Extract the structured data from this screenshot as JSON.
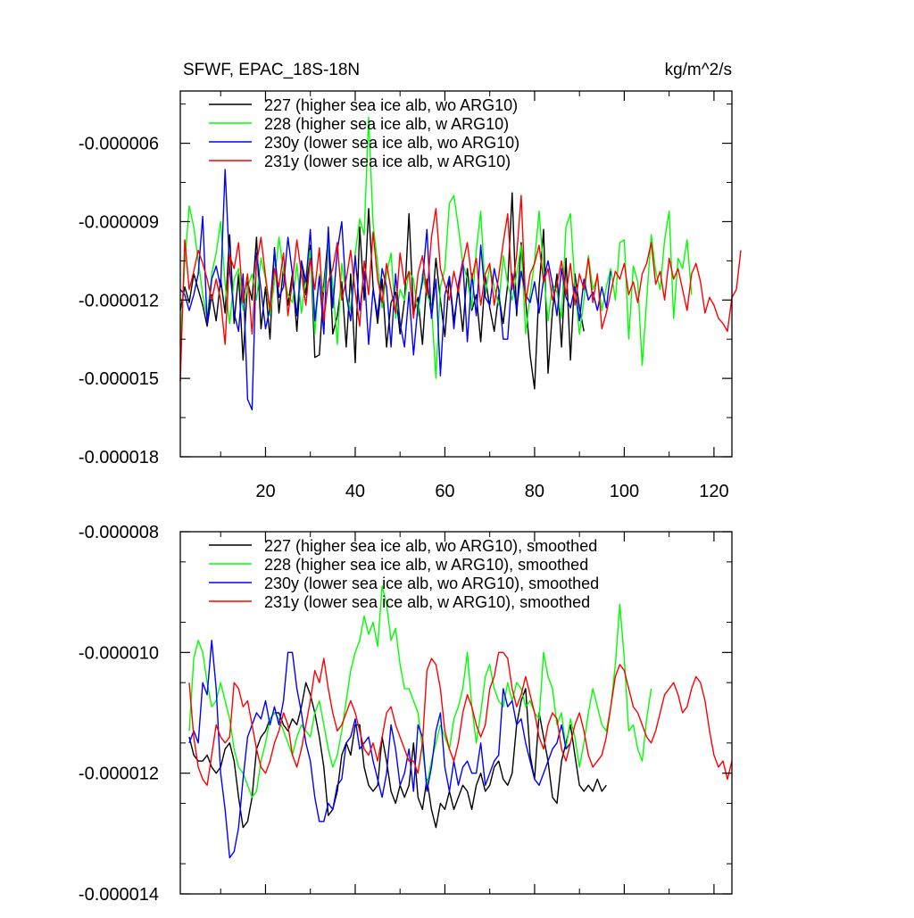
{
  "chart_data": [
    {
      "type": "line",
      "title": "SFWF, EPAC_18S-18N",
      "units": "kg/m^2/s",
      "xlabel": "",
      "ylabel": "",
      "xlim": [
        1,
        124
      ],
      "ylim": [
        -1.8e-05,
        -4e-06
      ],
      "yticks": [
        -1.8e-05,
        -1.5e-05,
        -1.2e-05,
        -9e-06,
        -6e-06
      ],
      "ytick_labels": [
        "-0.000018",
        "-0.000015",
        "-0.000012",
        "-0.000009",
        "-0.000006"
      ],
      "xticks": [
        20,
        40,
        60,
        80,
        100,
        120
      ],
      "xtick_labels": [
        "20",
        "40",
        "60",
        "80",
        "100",
        "120"
      ],
      "legend_position": "top-left",
      "series": [
        {
          "name": "227 (higher sea ice alb, wo ARG10)",
          "color": "#000000",
          "x_start": 1,
          "values": [
            -12.4,
            -11.5,
            -12.1,
            -11.0,
            -11.6,
            -12.2,
            -13.0,
            -11.8,
            -12.8,
            -11.2,
            -12.5,
            -9.5,
            -12.9,
            -11.0,
            -14.3,
            -11.3,
            -12.0,
            -9.6,
            -13.1,
            -11.5,
            -13.5,
            -10.0,
            -12.5,
            -10.8,
            -12.2,
            -11.0,
            -13.2,
            -10.5,
            -11.8,
            -9.9,
            -14.2,
            -14.1,
            -11.4,
            -9.6,
            -13.3,
            -12.6,
            -11.3,
            -13.8,
            -11.0,
            -14.4,
            -9.2,
            -12.0,
            -8.5,
            -11.5,
            -12.9,
            -11.2,
            -13.8,
            -12.1,
            -11.7,
            -13.3,
            -12.0,
            -8.7,
            -12.5,
            -11.9,
            -13.7,
            -11.2,
            -12.6,
            -10.4,
            -12.0,
            -13.4,
            -11.1,
            -12.8,
            -11.6,
            -13.2,
            -10.8,
            -12.4,
            -11.8,
            -13.6,
            -11.1,
            -12.3,
            -13.2,
            -11.8,
            -12.9,
            -11.4,
            -7.9,
            -12.6,
            -9.8,
            -12.0,
            -14.1,
            -15.4,
            -11.5,
            -9.3,
            -14.8,
            -12.4,
            -11.0,
            -13.8,
            -10.4,
            -14.3,
            -11.0,
            -12.3,
            -13.2
          ]
        },
        {
          "name": "228 (higher sea ice alb, w ARG10)",
          "color": "#00ff00",
          "x_start": 1,
          "values": [
            -13.6,
            -10.6,
            -8.4,
            -9.2,
            -10.5,
            -11.8,
            -12.7,
            -11.0,
            -10.2,
            -9.0,
            -11.4,
            -12.9,
            -11.2,
            -10.8,
            -12.4,
            -11.5,
            -11.0,
            -12.0,
            -10.4,
            -11.2,
            -12.6,
            -11.3,
            -9.6,
            -10.9,
            -11.8,
            -12.1,
            -10.6,
            -12.5,
            -11.2,
            -10.1,
            -13.3,
            -11.0,
            -11.7,
            -9.8,
            -11.4,
            -13.7,
            -10.6,
            -11.8,
            -12.4,
            -10.2,
            -8.9,
            -9.5,
            -5.0,
            -9.1,
            -10.6,
            -12.3,
            -11.0,
            -10.2,
            -12.7,
            -11.6,
            -12.0,
            -10.9,
            -11.2,
            -12.6,
            -11.0,
            -11.8,
            -12.2,
            -15.0,
            -11.5,
            -10.8,
            -8.3,
            -8.0,
            -9.2,
            -10.6,
            -11.2,
            -12.3,
            -10.1,
            -8.6,
            -11.8,
            -10.7,
            -11.5,
            -12.2,
            -10.3,
            -11.4,
            -12.0,
            -11.0,
            -9.9,
            -13.3,
            -11.8,
            -10.5,
            -8.6,
            -10.9,
            -12.8,
            -11.4,
            -11.7,
            -12.7,
            -9.2,
            -8.7,
            -11.5,
            -13.3,
            -12.0,
            -10.3,
            -11.6,
            -11.1,
            -12.4,
            -11.5,
            -10.8,
            -12.0,
            -9.8,
            -9.7,
            -13.5,
            -10.7,
            -11.3,
            -14.5,
            -12.0,
            -9.5,
            -10.9,
            -11.6,
            -9.7,
            -8.6,
            -12.7,
            -10.4,
            -10.8,
            -9.7,
            -11.8
          ]
        },
        {
          "name": "230y (lower sea ice alb, wo ARG10)",
          "color": "#0000ff",
          "x_start": 1,
          "values": [
            -11.6,
            -11.8,
            -12.4,
            -11.8,
            -11.0,
            -8.8,
            -12.9,
            -11.2,
            -10.7,
            -11.5,
            -7.0,
            -10.8,
            -12.5,
            -13.2,
            -11.0,
            -15.8,
            -16.2,
            -10.2,
            -11.6,
            -13.1,
            -12.3,
            -10.1,
            -11.9,
            -11.5,
            -9.6,
            -11.0,
            -12.6,
            -10.5,
            -11.3,
            -9.3,
            -12.8,
            -11.1,
            -13.3,
            -9.2,
            -12.3,
            -10.1,
            -9.0,
            -11.8,
            -12.8,
            -10.3,
            -12.4,
            -10.9,
            -13.7,
            -11.6,
            -12.6,
            -10.8,
            -11.5,
            -13.8,
            -11.0,
            -12.9,
            -13.8,
            -11.7,
            -14.1,
            -12.2,
            -11.3,
            -9.3,
            -12.7,
            -11.2,
            -14.9,
            -11.8,
            -11.1,
            -13.1,
            -11.4,
            -10.5,
            -13.6,
            -11.0,
            -12.6,
            -9.9,
            -11.9,
            -12.2,
            -10.8,
            -11.6,
            -13.5,
            -13.5,
            -11.0,
            -12.4,
            -10.9,
            -11.8,
            -12.1,
            -11.3,
            -12.5,
            -11.2,
            -10.5,
            -11.4,
            -12.6,
            -10.8,
            -11.9,
            -12.3,
            -11.5,
            -12.8,
            -11.2,
            -12.0,
            -11.7,
            -12.4,
            -11.5,
            -12.3,
            -10.9
          ]
        },
        {
          "name": "231y (lower sea ice alb, w ARG10)",
          "color": "#ff0000",
          "x_start": 1,
          "values": [
            -15.1,
            -9.7,
            -11.6,
            -10.9,
            -10.1,
            -10.6,
            -11.2,
            -12.0,
            -11.2,
            -12.0,
            -13.7,
            -10.3,
            -10.8,
            -9.8,
            -12.1,
            -11.0,
            -13.3,
            -10.6,
            -9.6,
            -11.1,
            -12.4,
            -10.8,
            -11.5,
            -10.2,
            -12.6,
            -11.3,
            -9.7,
            -11.0,
            -12.2,
            -10.4,
            -11.6,
            -10.0,
            -12.8,
            -11.3,
            -10.8,
            -9.8,
            -12.0,
            -11.2,
            -10.1,
            -11.7,
            -13.0,
            -10.5,
            -11.8,
            -9.4,
            -11.2,
            -12.1,
            -10.6,
            -11.6,
            -12.5,
            -10.2,
            -11.4,
            -10.9,
            -12.7,
            -11.0,
            -10.3,
            -11.8,
            -9.6,
            -8.5,
            -10.8,
            -11.4,
            -12.0,
            -10.9,
            -11.7,
            -10.6,
            -9.8,
            -11.2,
            -10.4,
            -12.2,
            -11.0,
            -10.6,
            -12.2,
            -11.1,
            -9.8,
            -8.7,
            -11.6,
            -10.3,
            -8.0,
            -12.1,
            -11.0,
            -10.6,
            -9.9,
            -11.3,
            -10.8,
            -12.0,
            -11.4,
            -10.5,
            -11.8,
            -10.6,
            -12.2,
            -11.0,
            -11.6,
            -10.4,
            -12.1,
            -11.0,
            -13.1,
            -12.5,
            -11.7,
            -10.9,
            -11.2,
            -10.6,
            -11.8,
            -11.3,
            -12.1,
            -11.0,
            -10.6,
            -9.8,
            -11.4,
            -10.9,
            -12.0,
            -10.4,
            -11.2,
            -10.8,
            -11.6,
            -12.4,
            -11.0,
            -10.6,
            -11.3,
            -12.5,
            -11.9,
            -12.2,
            -12.7,
            -12.9,
            -13.2,
            -11.9,
            -11.6,
            -10.1
          ]
        }
      ]
    },
    {
      "type": "line",
      "title": "",
      "xlabel": "",
      "ylabel": "",
      "xlim": [
        1,
        124
      ],
      "ylim": [
        -1.4e-05,
        -8e-06
      ],
      "yticks": [
        -1.4e-05,
        -1.2e-05,
        -1e-05,
        -8e-06
      ],
      "ytick_labels": [
        "-0.000014",
        "-0.000012",
        "-0.000010",
        "-0.000008"
      ],
      "legend_position": "top-left",
      "series": [
        {
          "name": "227 (higher sea ice alb, wo ARG10), smoothed",
          "color": "#000000",
          "x_start": 3,
          "values": [
            -11.4,
            -11.7,
            -11.8,
            -11.8,
            -11.7,
            -11.9,
            -12.0,
            -11.9,
            -11.6,
            -11.5,
            -11.8,
            -12.4,
            -12.9,
            -12.8,
            -12.4,
            -11.6,
            -11.4,
            -11.3,
            -11.1,
            -11.0,
            -11.0,
            -11.2,
            -11.3,
            -11.1,
            -11.2,
            -10.9,
            -10.5,
            -10.7,
            -11.0,
            -11.4,
            -11.9,
            -12.7,
            -12.6,
            -12.3,
            -11.7,
            -11.5,
            -11.7,
            -11.2,
            -11.2,
            -11.9,
            -12.2,
            -12.3,
            -12.2,
            -11.4,
            -11.8,
            -12.3,
            -12.5,
            -12.2,
            -12.4,
            -12.2,
            -11.5,
            -12.4,
            -12.6,
            -12.1,
            -12.6,
            -12.9,
            -12.5,
            -12.6,
            -12.3,
            -12.6,
            -12.4,
            -12.2,
            -12.3,
            -12.6,
            -12.2,
            -12.0,
            -12.3,
            -12.2,
            -11.9,
            -11.8,
            -12.1,
            -12.2,
            -12.0,
            -11.2,
            -10.8,
            -10.6,
            -11.7,
            -12.1,
            -11.0,
            -11.4,
            -11.8,
            -12.4,
            -12.5,
            -11.8,
            -11.5,
            -11.2,
            -11.7,
            -12.2,
            -12.3,
            -12.2,
            -12.3,
            -12.1,
            -12.3,
            -12.2
          ]
        },
        {
          "name": "228 (higher sea ice alb, w ARG10), smoothed",
          "color": "#00ff00",
          "x_start": 3,
          "values": [
            -11.3,
            -10.1,
            -9.8,
            -10.0,
            -10.5,
            -10.9,
            -10.8,
            -10.5,
            -10.8,
            -11.1,
            -11.6,
            -11.9,
            -12.0,
            -12.2,
            -12.4,
            -12.3,
            -11.8,
            -11.5,
            -11.1,
            -11.0,
            -11.1,
            -11.3,
            -11.5,
            -11.7,
            -11.4,
            -11.2,
            -11.3,
            -11.4,
            -11.0,
            -10.8,
            -11.2,
            -11.6,
            -11.9,
            -11.7,
            -11.3,
            -10.8,
            -10.3,
            -10.0,
            -9.8,
            -9.4,
            -9.7,
            -9.5,
            -9.9,
            -8.9,
            -9.2,
            -9.8,
            -9.6,
            -10.2,
            -10.6,
            -10.6,
            -10.8,
            -11.0,
            -11.6,
            -12.2,
            -11.8,
            -11.5,
            -11.2,
            -11.4,
            -11.6,
            -11.1,
            -10.9,
            -10.6,
            -10.0,
            -10.9,
            -11.5,
            -11.0,
            -10.4,
            -10.2,
            -10.6,
            -10.8,
            -10.9,
            -10.5,
            -10.8,
            -10.5,
            -10.6,
            -10.9,
            -10.8,
            -11.0,
            -11.1,
            -10.0,
            -10.4,
            -10.6,
            -11.2,
            -11.0,
            -11.6,
            -11.1,
            -11.4,
            -11.9,
            -11.5,
            -11.0,
            -10.6,
            -10.9,
            -11.2,
            -11.3,
            -10.9,
            -10.2,
            -9.2,
            -10.1,
            -11.3,
            -11.2,
            -11.6,
            -11.8,
            -11.1,
            -10.6
          ]
        },
        {
          "name": "230y (lower sea ice alb, wo ARG10), smoothed",
          "color": "#0000ff",
          "x_start": 3,
          "values": [
            -11.5,
            -11.3,
            -11.5,
            -10.5,
            -10.7,
            -9.8,
            -10.6,
            -12.0,
            -12.6,
            -13.4,
            -13.3,
            -12.9,
            -12.1,
            -11.4,
            -11.2,
            -11.0,
            -11.1,
            -10.8,
            -11.2,
            -10.9,
            -11.2,
            -10.8,
            -10.0,
            -10.0,
            -10.6,
            -11.0,
            -11.5,
            -11.8,
            -12.4,
            -12.8,
            -12.8,
            -12.5,
            -12.6,
            -12.2,
            -12.1,
            -11.5,
            -11.4,
            -11.1,
            -11.6,
            -11.5,
            -11.4,
            -11.8,
            -12.1,
            -12.4,
            -12.0,
            -11.2,
            -11.6,
            -12.2,
            -12.0,
            -11.6,
            -12.3,
            -11.2,
            -11.4,
            -12.3,
            -11.9,
            -11.3,
            -11.0,
            -11.9,
            -12.3,
            -11.8,
            -12.2,
            -11.9,
            -11.8,
            -12.0,
            -12.0,
            -11.5,
            -12.2,
            -12.0,
            -11.8,
            -11.7,
            -10.6,
            -10.9,
            -10.8,
            -11.2,
            -11.1,
            -11.5,
            -11.8,
            -12.1,
            -12.2,
            -12.0,
            -11.8,
            -11.6,
            -11.5,
            -11.2,
            -11.6,
            -11.5
          ]
        },
        {
          "name": "231y (lower sea ice alb, w ARG10), smoothed",
          "color": "#ff0000",
          "x_start": 3,
          "values": [
            -10.5,
            -11.4,
            -11.9,
            -12.1,
            -12.2,
            -11.7,
            -11.2,
            -11.4,
            -11.5,
            -11.4,
            -10.5,
            -10.6,
            -10.9,
            -10.8,
            -11.2,
            -11.6,
            -11.9,
            -12.0,
            -11.8,
            -11.5,
            -11.3,
            -11.0,
            -11.2,
            -11.7,
            -11.9,
            -11.6,
            -11.2,
            -10.8,
            -10.3,
            -10.5,
            -10.1,
            -10.6,
            -11.0,
            -11.3,
            -11.2,
            -11.0,
            -10.8,
            -11.0,
            -11.3,
            -11.6,
            -11.7,
            -11.5,
            -11.8,
            -11.4,
            -11.0,
            -10.9,
            -11.2,
            -11.4,
            -11.6,
            -11.8,
            -11.8,
            -12.0,
            -11.5,
            -10.3,
            -10.1,
            -10.2,
            -10.6,
            -11.3,
            -11.6,
            -11.8,
            -11.5,
            -11.0,
            -10.7,
            -10.9,
            -11.2,
            -11.4,
            -11.2,
            -10.6,
            -10.4,
            -10.0,
            -10.0,
            -10.1,
            -10.6,
            -10.9,
            -10.7,
            -10.4,
            -10.7,
            -11.0,
            -11.4,
            -11.6,
            -11.2,
            -11.0,
            -11.1,
            -11.6,
            -11.8,
            -11.5,
            -11.2,
            -11.0,
            -11.3,
            -11.7,
            -11.9,
            -11.8,
            -11.7,
            -11.4,
            -10.9,
            -10.4,
            -10.2,
            -10.3,
            -10.6,
            -10.9,
            -11.0,
            -11.2,
            -11.4,
            -11.5,
            -11.3,
            -11.0,
            -10.7,
            -10.6,
            -10.5,
            -10.7,
            -11.0,
            -10.9,
            -10.6,
            -10.4,
            -10.5,
            -10.8,
            -11.3,
            -11.7,
            -11.9,
            -11.8,
            -12.1,
            -11.8
          ]
        }
      ]
    }
  ]
}
